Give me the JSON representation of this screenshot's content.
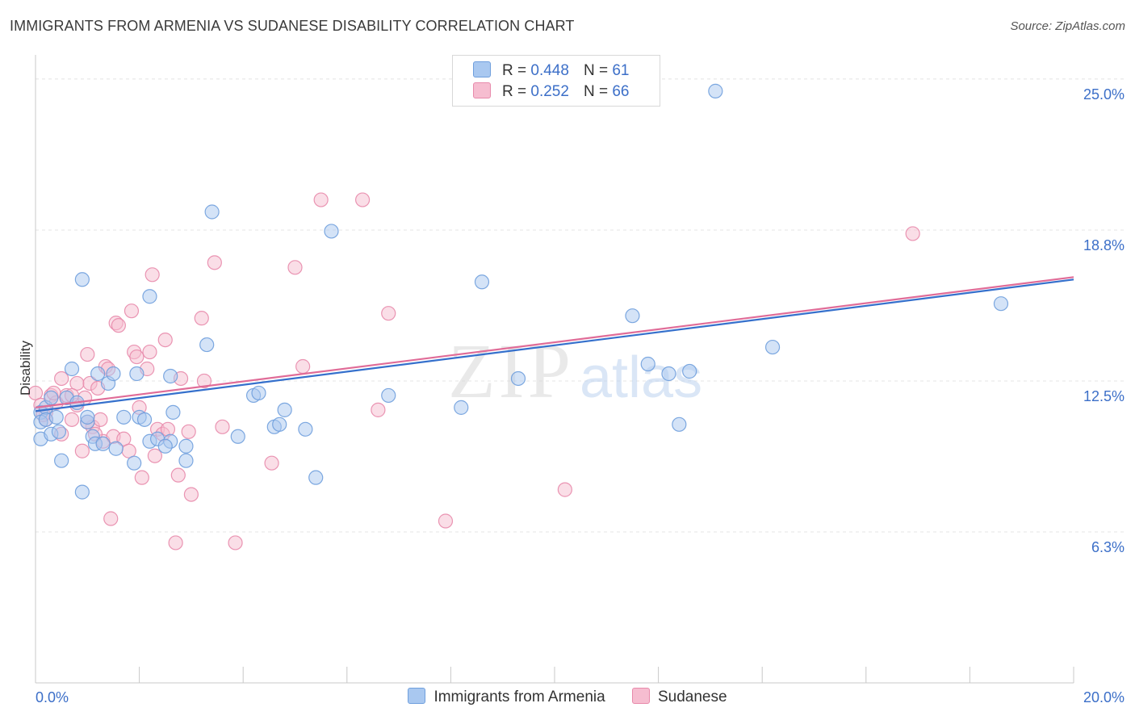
{
  "title": "IMMIGRANTS FROM ARMENIA VS SUDANESE DISABILITY CORRELATION CHART",
  "source": "Source: ZipAtlas.com",
  "watermark": {
    "zip": "ZIP",
    "atlas": "atlas"
  },
  "legend": {
    "r_label": "R =",
    "n_label": "N =",
    "series": [
      {
        "name": "Immigrants from Armenia",
        "r": "0.448",
        "n": "61"
      },
      {
        "name": "Sudanese",
        "r": "0.252",
        "n": "66"
      }
    ]
  },
  "colors": {
    "blue_fill": "#a9c8f0",
    "blue_stroke": "#6f9fdd",
    "blue_line": "#3570cc",
    "pink_fill": "#f6bdd0",
    "pink_stroke": "#e88aab",
    "pink_line": "#e06c98",
    "axis_text": "#3c6fc8",
    "grid": "#e4e4e4"
  },
  "chart_data": {
    "type": "scatter",
    "title": "IMMIGRANTS FROM ARMENIA VS SUDANESE DISABILITY CORRELATION CHART",
    "xlabel": "",
    "ylabel": "Disability",
    "xlim": [
      0,
      20
    ],
    "ylim": [
      0,
      26
    ],
    "x_tick_labels": [
      {
        "value": 0,
        "label": "0.0%"
      },
      {
        "value": 20,
        "label": "20.0%"
      }
    ],
    "y_ticks": [
      {
        "value": 6.25,
        "label": "6.3%"
      },
      {
        "value": 12.5,
        "label": "12.5%"
      },
      {
        "value": 18.75,
        "label": "18.8%"
      },
      {
        "value": 25.0,
        "label": "25.0%"
      }
    ],
    "series": [
      {
        "name": "Immigrants from Armenia",
        "trend": {
          "x0": 0,
          "y0": 11.25,
          "x1": 20,
          "y1": 16.7
        },
        "points": [
          [
            0.1,
            11.2
          ],
          [
            0.1,
            10.8
          ],
          [
            0.1,
            10.1
          ],
          [
            0.2,
            11.4
          ],
          [
            0.2,
            10.9
          ],
          [
            0.3,
            10.3
          ],
          [
            0.3,
            11.8
          ],
          [
            0.4,
            11.0
          ],
          [
            0.5,
            9.2
          ],
          [
            0.6,
            11.8
          ],
          [
            0.7,
            13.0
          ],
          [
            0.8,
            11.6
          ],
          [
            0.9,
            16.7
          ],
          [
            0.9,
            7.9
          ],
          [
            1.0,
            10.8
          ],
          [
            1.1,
            10.2
          ],
          [
            1.15,
            9.9
          ],
          [
            1.2,
            12.8
          ],
          [
            1.3,
            9.9
          ],
          [
            1.4,
            12.4
          ],
          [
            1.5,
            12.8
          ],
          [
            1.55,
            9.7
          ],
          [
            1.7,
            11.0
          ],
          [
            1.9,
            9.1
          ],
          [
            1.95,
            12.8
          ],
          [
            2.0,
            11.0
          ],
          [
            2.1,
            10.9
          ],
          [
            2.2,
            10.0
          ],
          [
            2.2,
            16.0
          ],
          [
            2.35,
            10.1
          ],
          [
            2.6,
            10.0
          ],
          [
            2.6,
            12.7
          ],
          [
            2.65,
            11.2
          ],
          [
            2.9,
            9.2
          ],
          [
            2.9,
            9.8
          ],
          [
            3.3,
            14.0
          ],
          [
            3.4,
            19.5
          ],
          [
            3.9,
            10.2
          ],
          [
            4.2,
            11.9
          ],
          [
            4.3,
            12.0
          ],
          [
            4.6,
            10.6
          ],
          [
            4.7,
            10.7
          ],
          [
            4.8,
            11.3
          ],
          [
            5.2,
            10.5
          ],
          [
            5.4,
            8.5
          ],
          [
            5.7,
            18.7
          ],
          [
            6.8,
            11.9
          ],
          [
            8.2,
            11.4
          ],
          [
            8.6,
            16.6
          ],
          [
            9.3,
            12.6
          ],
          [
            11.5,
            15.2
          ],
          [
            11.8,
            13.2
          ],
          [
            12.2,
            12.8
          ],
          [
            12.4,
            10.7
          ],
          [
            12.6,
            12.9
          ],
          [
            13.1,
            24.5
          ],
          [
            14.2,
            13.9
          ],
          [
            18.6,
            15.7
          ],
          [
            0.45,
            10.4
          ],
          [
            1.0,
            11.0
          ],
          [
            2.5,
            9.8
          ]
        ]
      },
      {
        "name": "Sudanese",
        "trend": {
          "x0": 0,
          "y0": 11.4,
          "x1": 20,
          "y1": 16.8
        },
        "points": [
          [
            0.0,
            12.0
          ],
          [
            0.1,
            11.5
          ],
          [
            0.2,
            11.2
          ],
          [
            0.2,
            10.9
          ],
          [
            0.3,
            11.9
          ],
          [
            0.4,
            11.6
          ],
          [
            0.5,
            12.6
          ],
          [
            0.5,
            10.3
          ],
          [
            0.6,
            11.9
          ],
          [
            0.7,
            10.9
          ],
          [
            0.8,
            11.5
          ],
          [
            0.8,
            12.4
          ],
          [
            0.9,
            9.6
          ],
          [
            0.95,
            11.8
          ],
          [
            1.0,
            13.6
          ],
          [
            1.05,
            12.4
          ],
          [
            1.1,
            10.6
          ],
          [
            1.2,
            12.2
          ],
          [
            1.25,
            10.9
          ],
          [
            1.3,
            10.0
          ],
          [
            1.35,
            13.1
          ],
          [
            1.4,
            13.0
          ],
          [
            1.45,
            6.8
          ],
          [
            1.5,
            10.2
          ],
          [
            1.55,
            14.9
          ],
          [
            1.6,
            14.8
          ],
          [
            1.7,
            10.1
          ],
          [
            1.8,
            9.6
          ],
          [
            1.85,
            15.4
          ],
          [
            1.9,
            13.7
          ],
          [
            1.95,
            13.5
          ],
          [
            2.0,
            11.4
          ],
          [
            2.05,
            8.5
          ],
          [
            2.15,
            13.0
          ],
          [
            2.2,
            13.7
          ],
          [
            2.25,
            16.9
          ],
          [
            2.35,
            10.5
          ],
          [
            2.45,
            10.3
          ],
          [
            2.5,
            14.2
          ],
          [
            2.55,
            10.5
          ],
          [
            2.7,
            5.8
          ],
          [
            2.75,
            8.6
          ],
          [
            2.8,
            12.6
          ],
          [
            2.95,
            10.4
          ],
          [
            3.0,
            7.8
          ],
          [
            3.2,
            15.1
          ],
          [
            3.25,
            12.5
          ],
          [
            3.45,
            17.4
          ],
          [
            3.6,
            10.6
          ],
          [
            3.85,
            5.8
          ],
          [
            4.55,
            9.1
          ],
          [
            5.0,
            17.2
          ],
          [
            5.15,
            13.1
          ],
          [
            5.5,
            20.0
          ],
          [
            6.3,
            20.0
          ],
          [
            6.6,
            11.3
          ],
          [
            6.8,
            15.3
          ],
          [
            7.9,
            6.7
          ],
          [
            10.2,
            8.0
          ],
          [
            16.9,
            18.6
          ],
          [
            0.15,
            11.1
          ],
          [
            0.7,
            11.9
          ],
          [
            1.15,
            10.3
          ],
          [
            2.3,
            9.4
          ],
          [
            0.35,
            12.0
          ],
          [
            1.0,
            10.8
          ]
        ]
      }
    ]
  }
}
